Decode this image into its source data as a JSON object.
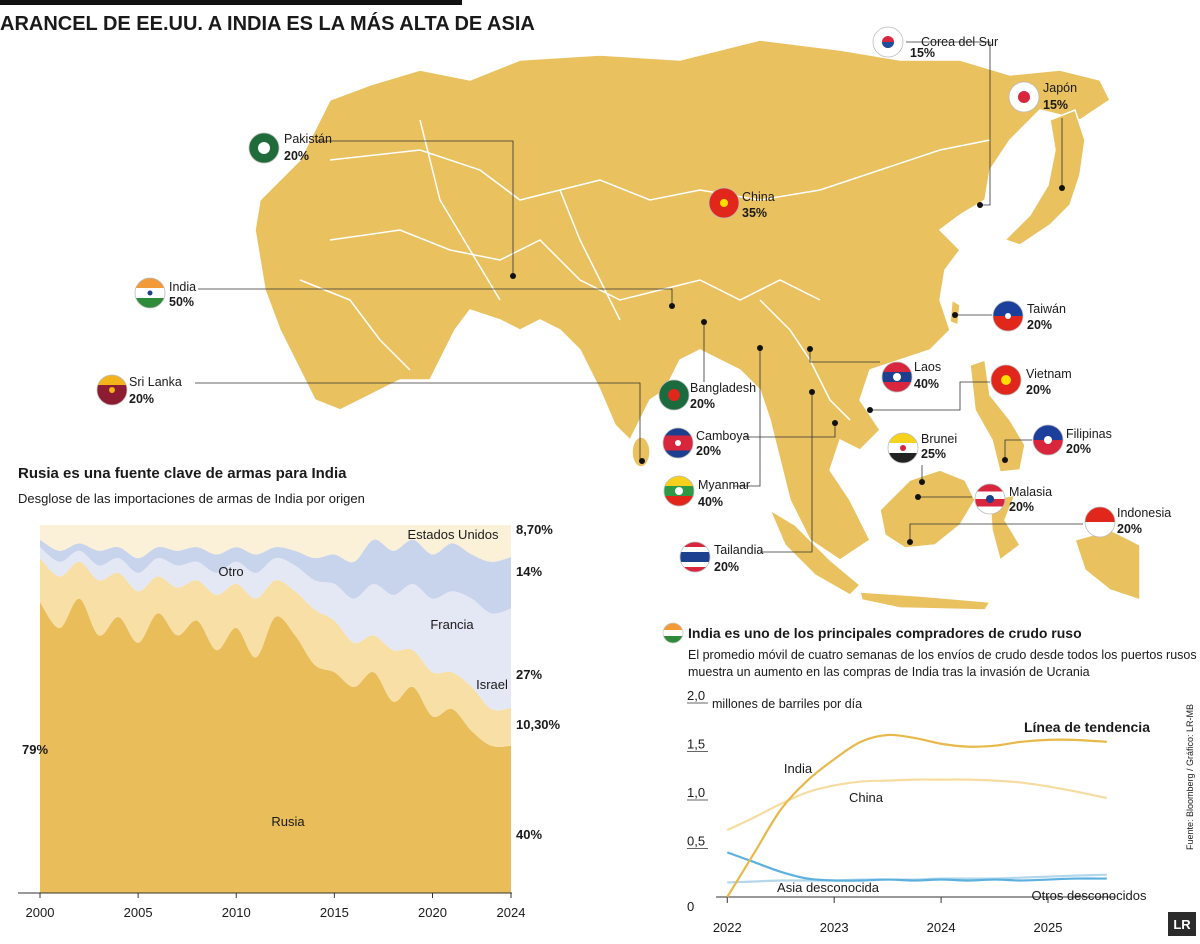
{
  "title": "ARANCEL DE EE.UU. A INDIA ES LA MÁS ALTA DE ASIA",
  "map": {
    "countries": [
      {
        "name": "Corea del Sur",
        "tariff": "15%"
      },
      {
        "name": "Japón",
        "tariff": "15%"
      },
      {
        "name": "Pakistán",
        "tariff": "20%"
      },
      {
        "name": "China",
        "tariff": "35%"
      },
      {
        "name": "India",
        "tariff": "50%"
      },
      {
        "name": "Sri Lanka",
        "tariff": "20%"
      },
      {
        "name": "Taiwán",
        "tariff": "20%"
      },
      {
        "name": "Bangladesh",
        "tariff": "20%"
      },
      {
        "name": "Laos",
        "tariff": "40%"
      },
      {
        "name": "Vietnam",
        "tariff": "20%"
      },
      {
        "name": "Filipinas",
        "tariff": "20%"
      },
      {
        "name": "Camboya",
        "tariff": "20%"
      },
      {
        "name": "Brunei",
        "tariff": "25%"
      },
      {
        "name": "Myanmar",
        "tariff": "40%"
      },
      {
        "name": "Malasia",
        "tariff": "20%"
      },
      {
        "name": "Indonesia",
        "tariff": "20%"
      },
      {
        "name": "Tailandia",
        "tariff": "20%"
      }
    ]
  },
  "chart_data": [
    {
      "type": "area",
      "stacked": true,
      "title": "Rusia es una fuente clave de armas para India",
      "subtitle": "Desglose de las importaciones de armas de India por origen",
      "x": [
        2000,
        2001,
        2002,
        2003,
        2004,
        2005,
        2006,
        2007,
        2008,
        2009,
        2010,
        2011,
        2012,
        2013,
        2014,
        2015,
        2016,
        2017,
        2018,
        2019,
        2020,
        2021,
        2022,
        2023,
        2024
      ],
      "xlim": [
        2000,
        2024
      ],
      "xticks": [
        2000,
        2005,
        2010,
        2015,
        2020,
        2024
      ],
      "ylim": [
        0,
        100
      ],
      "series": [
        {
          "name": "Rusia",
          "color": "#e8bd5a",
          "values": [
            79,
            72,
            80,
            70,
            75,
            68,
            76,
            70,
            74,
            66,
            72,
            64,
            75,
            70,
            62,
            60,
            56,
            60,
            52,
            56,
            48,
            50,
            44,
            40,
            40
          ],
          "value_labels": [
            "79%",
            null,
            null,
            null,
            null,
            null,
            null,
            null,
            null,
            null,
            null,
            null,
            null,
            null,
            null,
            null,
            null,
            null,
            null,
            null,
            null,
            null,
            null,
            null,
            "40%"
          ]
        },
        {
          "name": "Otro",
          "color": "#f8dfa6",
          "values": [
            12,
            14,
            10,
            15,
            12,
            14,
            10,
            13,
            11,
            15,
            12,
            16,
            10,
            12,
            15,
            14,
            12,
            10,
            14,
            10,
            12,
            10,
            12,
            10,
            10.3
          ],
          "value_labels": [
            null,
            null,
            null,
            null,
            null,
            null,
            null,
            null,
            null,
            null,
            null,
            null,
            null,
            null,
            null,
            null,
            null,
            null,
            null,
            null,
            null,
            null,
            null,
            null,
            "10,30%"
          ]
        },
        {
          "name": "Israel",
          "color": "#e4e7f4",
          "values": [
            3,
            4,
            3,
            4,
            4,
            5,
            5,
            6,
            5,
            6,
            6,
            7,
            6,
            7,
            8,
            10,
            12,
            14,
            15,
            18,
            20,
            22,
            24,
            26,
            27
          ],
          "value_labels": [
            null,
            null,
            null,
            null,
            null,
            null,
            null,
            null,
            null,
            null,
            null,
            null,
            null,
            null,
            null,
            null,
            null,
            null,
            null,
            null,
            null,
            null,
            null,
            null,
            "27%"
          ]
        },
        {
          "name": "Francia",
          "color": "#c8d3ec",
          "values": [
            2,
            3,
            2,
            4,
            3,
            4,
            3,
            4,
            4,
            5,
            4,
            5,
            3,
            4,
            6,
            8,
            10,
            12,
            12,
            12,
            12,
            13,
            12,
            14,
            14
          ],
          "value_labels": [
            null,
            null,
            null,
            null,
            null,
            null,
            null,
            null,
            null,
            null,
            null,
            null,
            null,
            null,
            null,
            null,
            null,
            null,
            null,
            null,
            null,
            null,
            null,
            null,
            "14%"
          ]
        },
        {
          "name": "Estados Unidos",
          "color": "#fbf1d8",
          "values": [
            4,
            7,
            5,
            7,
            6,
            9,
            6,
            7,
            6,
            8,
            6,
            8,
            6,
            7,
            9,
            8,
            10,
            4,
            7,
            4,
            8,
            5,
            8,
            10,
            8.7
          ],
          "value_labels": [
            null,
            null,
            null,
            null,
            null,
            null,
            null,
            null,
            null,
            null,
            null,
            null,
            null,
            null,
            null,
            null,
            null,
            null,
            null,
            null,
            null,
            null,
            null,
            null,
            "8,70%"
          ]
        }
      ]
    },
    {
      "type": "line",
      "title": "India es uno de los principales compradores de crudo ruso",
      "subtitle": [
        "El promedio móvil de cuatro semanas de los envíos de crudo desde todos los puertos rusos",
        "muestra un aumento en las compras de India tras la invasión de Ucrania"
      ],
      "y_label": "millones de barriles por día",
      "annotation": "Línea de tendencia",
      "x": [
        2022,
        2022.25,
        2022.5,
        2022.75,
        2023,
        2023.25,
        2023.5,
        2023.75,
        2024,
        2024.25,
        2024.5,
        2024.75,
        2025,
        2025.25,
        2025.55
      ],
      "xlim": [
        2021.96,
        2025.58
      ],
      "xticks": [
        2022,
        2023,
        2024,
        2025
      ],
      "ylim": [
        0,
        2
      ],
      "yticks": [
        0,
        {
          "value": 0.5,
          "label": "0,5"
        },
        {
          "value": 1,
          "label": "1,0"
        },
        {
          "value": 1.5,
          "label": "1,5"
        },
        {
          "value": 2,
          "label": "2,0"
        }
      ],
      "series": [
        {
          "name": "India",
          "color": "#e8b94a",
          "values": [
            0,
            0.45,
            0.9,
            1.2,
            1.42,
            1.6,
            1.67,
            1.64,
            1.58,
            1.55,
            1.56,
            1.6,
            1.62,
            1.62,
            1.6
          ]
        },
        {
          "name": "China",
          "color": "#f6dca0",
          "values": [
            0.69,
            0.82,
            0.96,
            1.08,
            1.15,
            1.19,
            1.2,
            1.21,
            1.21,
            1.21,
            1.2,
            1.18,
            1.14,
            1.09,
            1.02
          ]
        },
        {
          "name": "Asia desconocida",
          "color": "#5bb0df",
          "values": [
            0.46,
            0.36,
            0.26,
            0.19,
            0.17,
            0.17,
            0.18,
            0.17,
            0.18,
            0.17,
            0.18,
            0.17,
            0.18,
            0.19,
            0.19
          ]
        },
        {
          "name": "Otros desconocidos",
          "color": "#b5d7eb",
          "values": [
            0.15,
            0.16,
            0.17,
            0.17,
            0.17,
            0.18,
            0.18,
            0.18,
            0.19,
            0.19,
            0.19,
            0.2,
            0.21,
            0.22,
            0.23
          ]
        }
      ]
    }
  ],
  "source": "Fuente: Bloomberg / Gráfico: LR-MB",
  "logo": "LR"
}
